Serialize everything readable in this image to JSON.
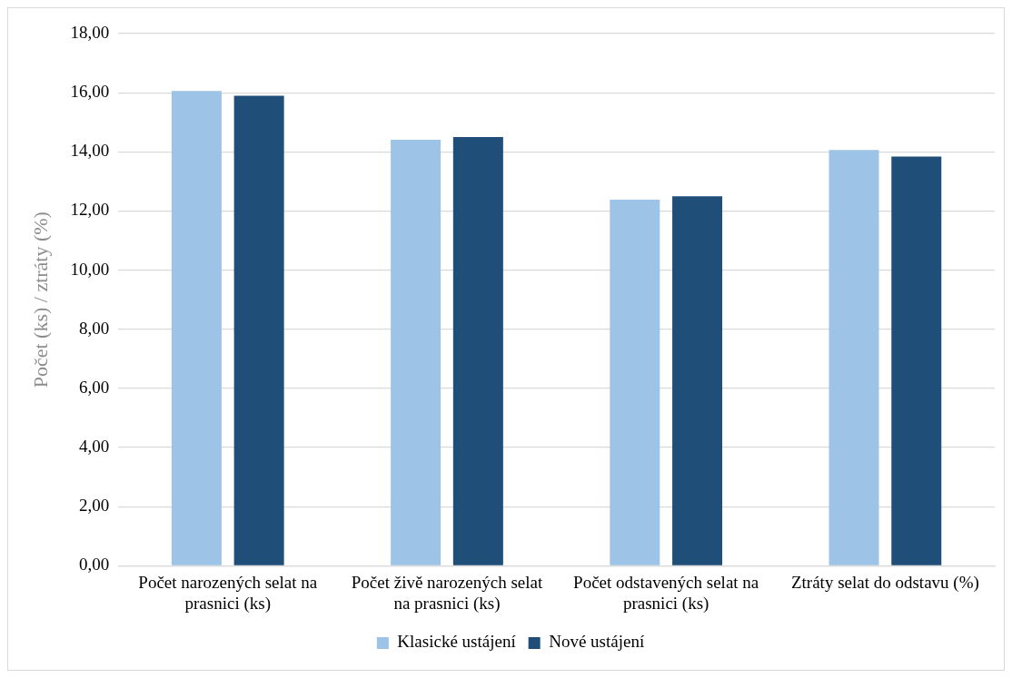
{
  "chart_data": {
    "type": "bar",
    "ylabel": "Počet (ks) / ztráty (%)",
    "categories": [
      "Počet narozených selat na prasnici (ks)",
      "Počet živě narozených selat na prasnici (ks)",
      "Počet odstavených selat na prasnici (ks)",
      "Ztráty selat do odstavu (%)"
    ],
    "series": [
      {
        "name": "Klasické ustájení",
        "color": "#9dc3e6",
        "values": [
          16.06,
          14.41,
          12.38,
          14.06
        ]
      },
      {
        "name": "Nové ustájení",
        "color": "#1f4e79",
        "values": [
          15.9,
          14.5,
          12.5,
          13.84
        ]
      }
    ],
    "ylim": [
      0,
      18
    ],
    "yticks": [
      {
        "value": 0,
        "label": "0,00"
      },
      {
        "value": 2,
        "label": "2,00"
      },
      {
        "value": 4,
        "label": "4,00"
      },
      {
        "value": 6,
        "label": "6,00"
      },
      {
        "value": 8,
        "label": "8,00"
      },
      {
        "value": 10,
        "label": "10,00"
      },
      {
        "value": 12,
        "label": "12,00"
      },
      {
        "value": 14,
        "label": "14,00"
      },
      {
        "value": 16,
        "label": "16,00"
      },
      {
        "value": 18,
        "label": "18,00"
      }
    ],
    "grid": "y",
    "legend": "bottom"
  }
}
